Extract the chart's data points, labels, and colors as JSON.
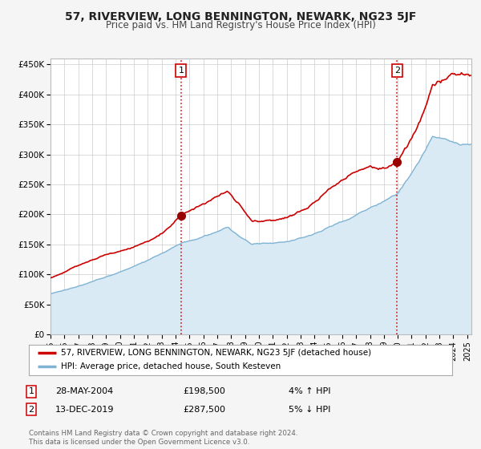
{
  "title": "57, RIVERVIEW, LONG BENNINGTON, NEWARK, NG23 5JF",
  "subtitle": "Price paid vs. HM Land Registry's House Price Index (HPI)",
  "xlim_start": 1995.0,
  "xlim_end": 2025.3,
  "ylim_min": 0,
  "ylim_max": 460000,
  "yticks": [
    0,
    50000,
    100000,
    150000,
    200000,
    250000,
    300000,
    350000,
    400000,
    450000
  ],
  "ytick_labels": [
    "£0",
    "£50K",
    "£100K",
    "£150K",
    "£200K",
    "£250K",
    "£300K",
    "£350K",
    "£400K",
    "£450K"
  ],
  "xticks": [
    1995,
    1996,
    1997,
    1998,
    1999,
    2000,
    2001,
    2002,
    2003,
    2004,
    2005,
    2006,
    2007,
    2008,
    2009,
    2010,
    2011,
    2012,
    2013,
    2014,
    2015,
    2016,
    2017,
    2018,
    2019,
    2020,
    2021,
    2022,
    2023,
    2024,
    2025
  ],
  "sale1_x": 2004.4,
  "sale1_y": 198500,
  "sale2_x": 2019.95,
  "sale2_y": 287500,
  "sale1_date": "28-MAY-2004",
  "sale1_price": "£198,500",
  "sale1_hpi": "4% ↑ HPI",
  "sale2_date": "13-DEC-2019",
  "sale2_price": "£287,500",
  "sale2_hpi": "5% ↓ HPI",
  "property_line_color": "#cc0000",
  "hpi_line_color": "#7fb3d3",
  "hpi_fill_color": "#daeaf5",
  "sale_dot_color": "#990000",
  "vline_color": "#cc0000",
  "plot_bg_color": "#ffffff",
  "fig_bg_color": "#f5f5f5",
  "grid_color": "#cccccc",
  "legend_property": "57, RIVERVIEW, LONG BENNINGTON, NEWARK, NG23 5JF (detached house)",
  "legend_hpi": "HPI: Average price, detached house, South Kesteven",
  "footnote": "Contains HM Land Registry data © Crown copyright and database right 2024.\nThis data is licensed under the Open Government Licence v3.0."
}
